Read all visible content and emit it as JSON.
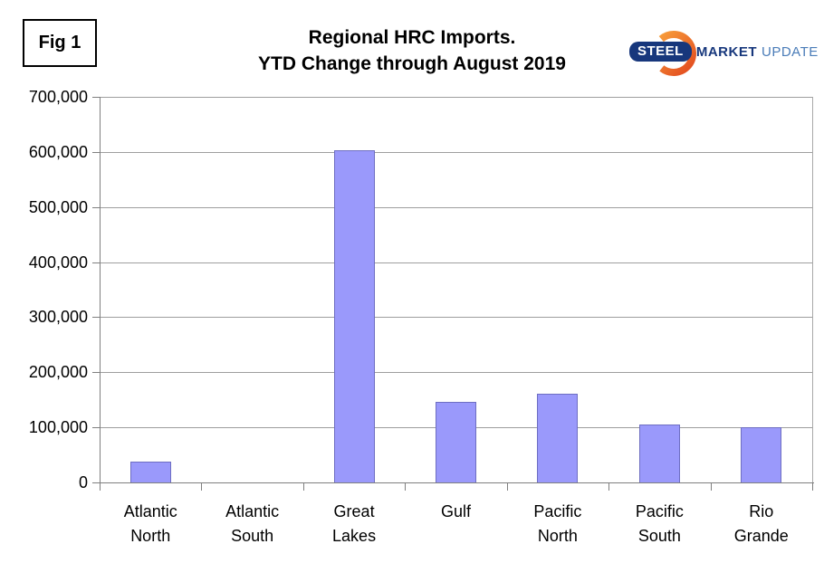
{
  "figure_label": "Fig 1",
  "title": {
    "line1": "Regional HRC Imports.",
    "line2": "YTD Change through August 2019"
  },
  "logo": {
    "steel": "STEEL",
    "market": "MARKET",
    "update": "UPDATE",
    "navy": "#17377c",
    "light_blue": "#4a7cb8",
    "orange_light": "#f9a23b",
    "orange_dark": "#e2491f"
  },
  "chart_data": {
    "type": "bar",
    "title": "Regional HRC Imports. YTD Change through August 2019",
    "categories": [
      "Atlantic North",
      "Atlantic South",
      "Great Lakes",
      "Gulf",
      "Pacific North",
      "Pacific South",
      "Rio Grande"
    ],
    "values": [
      38000,
      0,
      603000,
      147000,
      161000,
      105000,
      100000
    ],
    "xlabel": "",
    "ylabel": "",
    "ylim": [
      0,
      700000
    ],
    "ytick_step": 100000,
    "ytick_labels": [
      "0",
      "100,000",
      "200,000",
      "300,000",
      "400,000",
      "500,000",
      "600,000",
      "700,000"
    ],
    "grid": true,
    "legend": "none",
    "bar_fill": "#9a99fb",
    "bar_border": "#6e6ec2",
    "gridline_color": "#9e9e9e",
    "axis_color": "#7f7f7f"
  }
}
